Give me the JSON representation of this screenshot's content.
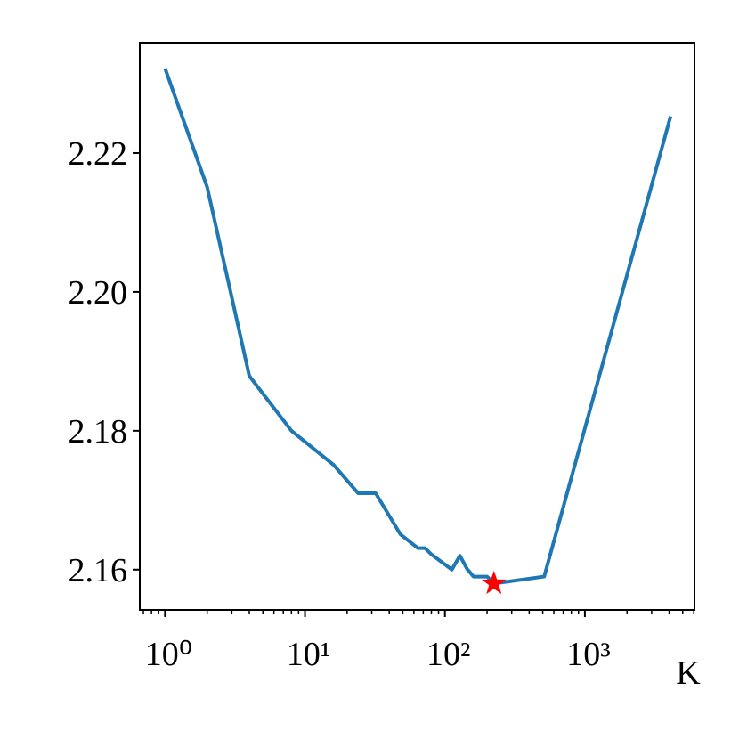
{
  "chart_data": {
    "type": "line",
    "xlabel": "K",
    "xscale": "log",
    "xlim": [
      0.66,
      6070
    ],
    "ylim": [
      2.1542,
      2.2359
    ],
    "xticks": [
      {
        "value": 1,
        "label": "10⁰"
      },
      {
        "value": 10,
        "label": "10¹"
      },
      {
        "value": 100,
        "label": "10²"
      },
      {
        "value": 1000,
        "label": "10³"
      }
    ],
    "xminorticks": [
      0.7,
      0.8,
      0.9,
      2,
      3,
      4,
      5,
      6,
      7,
      8,
      9,
      20,
      30,
      40,
      50,
      60,
      70,
      80,
      90,
      200,
      300,
      400,
      500,
      600,
      700,
      800,
      900,
      2000,
      3000,
      4000,
      5000,
      6000
    ],
    "yticks": [
      {
        "value": 2.16,
        "label": "2.16"
      },
      {
        "value": 2.18,
        "label": "2.18"
      },
      {
        "value": 2.2,
        "label": "2.20"
      },
      {
        "value": 2.22,
        "label": "2.22"
      }
    ],
    "x": [
      1,
      2,
      4,
      8,
      16,
      24,
      32,
      48,
      64,
      72,
      80,
      112,
      128,
      144,
      160,
      200,
      224,
      512,
      4096
    ],
    "series": [
      {
        "color": "#1f77b4",
        "values": [
          2.2322,
          2.2151,
          2.1879,
          2.18,
          2.1751,
          2.171,
          2.171,
          2.1651,
          2.1631,
          2.1631,
          2.1622,
          2.16,
          2.162,
          2.1601,
          2.159,
          2.159,
          2.158,
          2.159,
          2.2253
        ]
      }
    ],
    "highlight": {
      "x": 224,
      "y": 2.158,
      "color": "#ff0000",
      "marker": "star"
    }
  }
}
